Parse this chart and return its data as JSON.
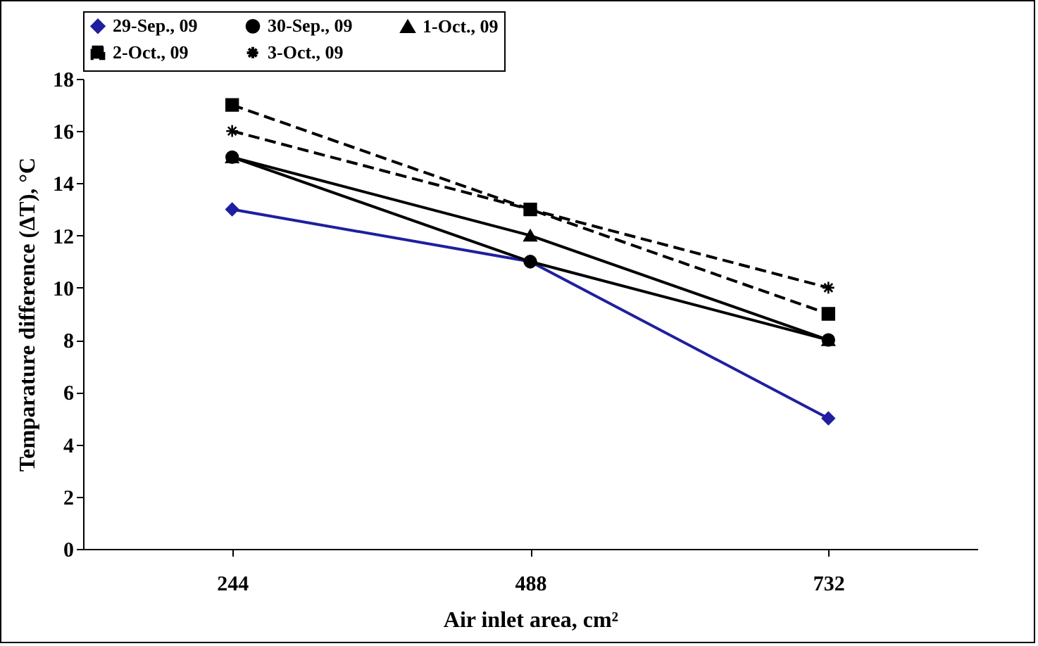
{
  "chart_data": {
    "type": "line",
    "xlabel": "Air inlet area, cm²",
    "ylabel": "Temparature difference (ΔT), °C",
    "categories": [
      "244",
      "488",
      "732"
    ],
    "series": [
      {
        "name": "29-Sep., 09",
        "color": "#1f1f9f",
        "values": [
          13,
          11,
          5
        ],
        "marker": "diamond",
        "line_style": "solid"
      },
      {
        "name": "30-Sep., 09",
        "color": "#000000",
        "values": [
          15,
          11,
          8
        ],
        "marker": "circle",
        "line_style": "solid"
      },
      {
        "name": "1-Oct., 09",
        "color": "#000000",
        "values": [
          15,
          12,
          8
        ],
        "marker": "triangle",
        "line_style": "solid"
      },
      {
        "name": "2-Oct., 09",
        "color": "#000000",
        "values": [
          17,
          13,
          9
        ],
        "marker": "square",
        "line_style": "dashed"
      },
      {
        "name": "3-Oct., 09",
        "color": "#000000",
        "values": [
          16,
          13,
          10
        ],
        "marker": "cross",
        "line_style": "dashed"
      }
    ],
    "ylim": [
      0,
      18
    ],
    "yticks": [
      0,
      2,
      4,
      6,
      8,
      10,
      12,
      14,
      16,
      18
    ],
    "grid": false,
    "legend": "top"
  }
}
